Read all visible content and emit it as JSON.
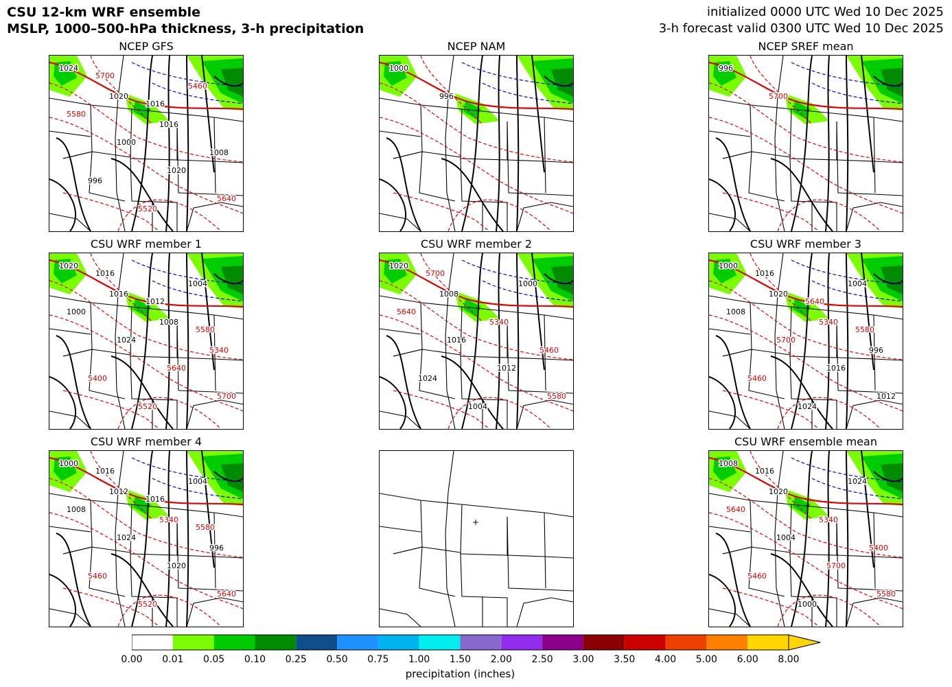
{
  "header": {
    "title_line1": "CSU 12-km WRF ensemble",
    "title_line2": "MSLP, 1000–500-hPa thickness, 3-h precipitation",
    "init_line": "initialized 0000 UTC Wed 10 Dec 2025",
    "valid_line": "3-h forecast valid 0300 UTC Wed 10 Dec 2025"
  },
  "panels": [
    {
      "title": "NCEP GFS",
      "labels": [
        "1024",
        "1020",
        "1016",
        "1008",
        "996",
        "5520",
        "5460",
        "5580",
        "1000",
        "1020",
        "5640",
        "5700",
        "1016"
      ]
    },
    {
      "title": "NCEP NAM",
      "labels": [
        "1000",
        "996"
      ]
    },
    {
      "title": "NCEP SREF mean",
      "labels": [
        "996",
        "5700"
      ]
    },
    {
      "title": "CSU WRF member 1",
      "labels": [
        "1020",
        "1016",
        "1008",
        "5340",
        "5400",
        "5520",
        "1004",
        "1000",
        "1024",
        "5640",
        "5700",
        "1016",
        "1012",
        "5580"
      ]
    },
    {
      "title": "CSU WRF member 2",
      "labels": [
        "1020",
        "1008",
        "5340",
        "5460",
        "1024",
        "1004",
        "1000",
        "5640",
        "1016",
        "1012",
        "5580",
        "5700"
      ]
    },
    {
      "title": "CSU WRF member 3",
      "labels": [
        "1000",
        "1020",
        "5340",
        "996",
        "5460",
        "1024",
        "1004",
        "1008",
        "5700",
        "1016",
        "1012",
        "1016",
        "5640",
        "5580"
      ]
    },
    {
      "title": "CSU WRF member 4",
      "labels": [
        "1000",
        "1012",
        "5340",
        "996",
        "5460",
        "5520",
        "1004",
        "1008",
        "1024",
        "1020",
        "5640",
        "1016",
        "1016",
        "5580"
      ]
    },
    {
      "title": "",
      "labels": []
    },
    {
      "title": "CSU WRF ensemble mean",
      "labels": [
        "1008",
        "1020",
        "5340",
        "5400",
        "5460",
        "1000",
        "1024",
        "5640",
        "1004",
        "5700",
        "5580",
        "1016"
      ]
    }
  ],
  "colorbar": {
    "label": "precipitation (inches)",
    "ticks": [
      "0.00",
      "0.01",
      "0.05",
      "0.10",
      "0.25",
      "0.50",
      "0.75",
      "1.00",
      "1.50",
      "2.00",
      "2.50",
      "3.00",
      "3.50",
      "4.00",
      "5.00",
      "6.00",
      "8.00"
    ],
    "colors": [
      "#ffffff",
      "#7cfc00",
      "#00cd00",
      "#008b00",
      "#104e8b",
      "#1e90ff",
      "#00b2ee",
      "#00eeee",
      "#8968cd",
      "#912cee",
      "#8b008b",
      "#8b0000",
      "#cd0000",
      "#ee4000",
      "#ff7f00",
      "#ffd700"
    ]
  }
}
